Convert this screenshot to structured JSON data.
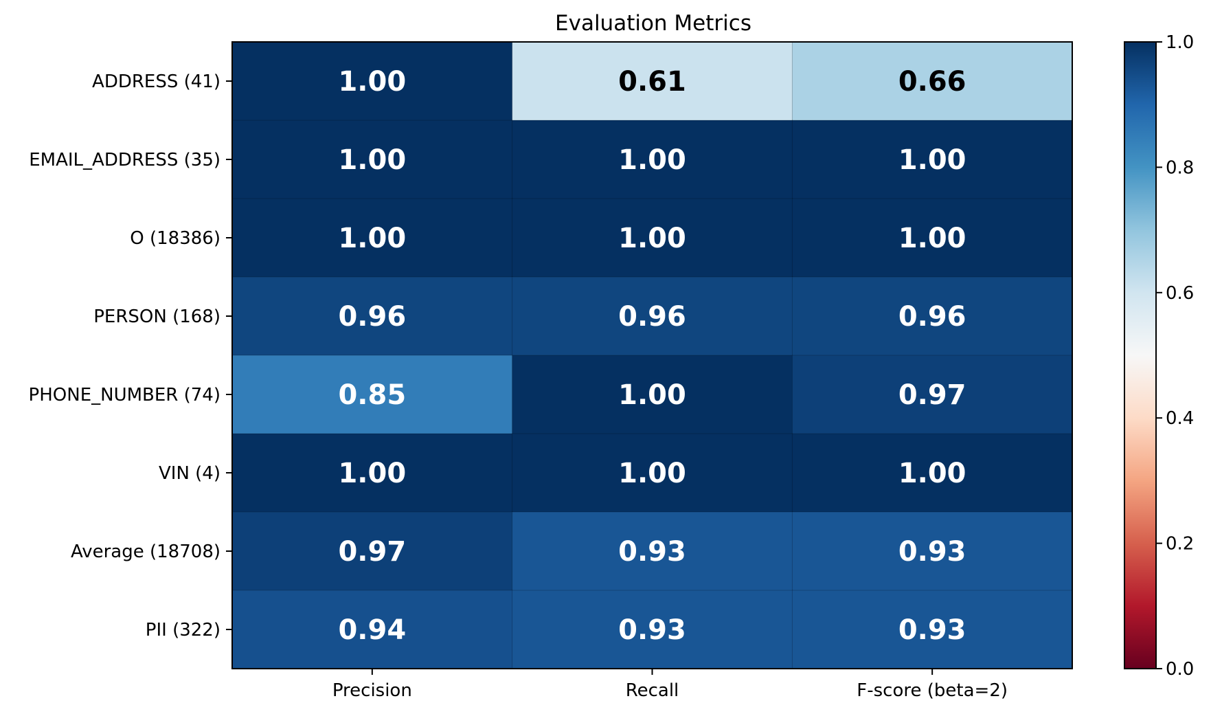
{
  "chart_data": {
    "type": "heatmap",
    "title": "Evaluation Metrics",
    "rows": [
      "ADDRESS (41)",
      "EMAIL_ADDRESS (35)",
      "O (18386)",
      "PERSON (168)",
      "PHONE_NUMBER (74)",
      "VIN (4)",
      "Average (18708)",
      "PII (322)"
    ],
    "columns": [
      "Precision",
      "Recall",
      "F-score (beta=2)"
    ],
    "values": [
      [
        1.0,
        0.61,
        0.66
      ],
      [
        1.0,
        1.0,
        1.0
      ],
      [
        1.0,
        1.0,
        1.0
      ],
      [
        0.96,
        0.96,
        0.96
      ],
      [
        0.85,
        1.0,
        0.97
      ],
      [
        1.0,
        1.0,
        1.0
      ],
      [
        0.97,
        0.93,
        0.93
      ],
      [
        0.94,
        0.93,
        0.93
      ]
    ],
    "labels": [
      [
        "1.00",
        "0.61",
        "0.66"
      ],
      [
        "1.00",
        "1.00",
        "1.00"
      ],
      [
        "1.00",
        "1.00",
        "1.00"
      ],
      [
        "0.96",
        "0.96",
        "0.96"
      ],
      [
        "0.85",
        "1.00",
        "0.97"
      ],
      [
        "1.00",
        "1.00",
        "1.00"
      ],
      [
        "0.97",
        "0.93",
        "0.93"
      ],
      [
        "0.94",
        "0.93",
        "0.93"
      ]
    ],
    "colormap": "RdBu",
    "vmin": 0.0,
    "vmax": 1.0,
    "colorbar_ticks": [
      "0.0",
      "0.2",
      "0.4",
      "0.6",
      "0.8",
      "1.0"
    ],
    "grid": false
  }
}
